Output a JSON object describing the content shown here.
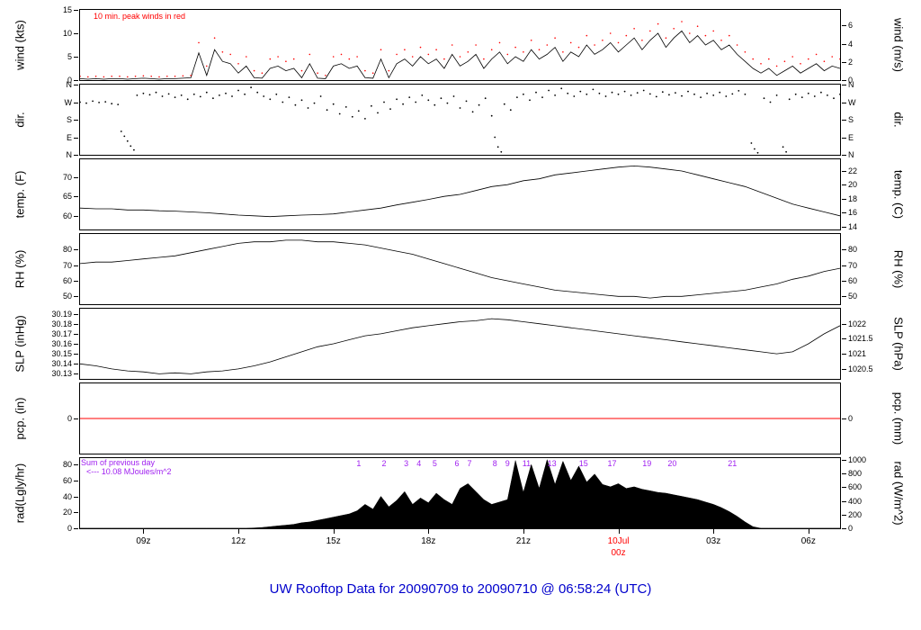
{
  "title": {
    "text": "UW Rooftop Data for 20090709  to  20090710 @ 06:58:24  (UTC)",
    "color": "#0000cc"
  },
  "annotations": {
    "wind_note": "10 min. peak winds in red",
    "wind_note_color": "#ff0000",
    "rad_sum_line1": "Sum of previous day",
    "rad_sum_line2": "<--- 10.08 MJoules/m^2",
    "rad_note_color": "#a020f0",
    "hour_color": "#a020f0"
  },
  "x_axis": {
    "ticks": [
      {
        "t": 9,
        "label": "09z"
      },
      {
        "t": 12,
        "label": "12z"
      },
      {
        "t": 15,
        "label": "15z"
      },
      {
        "t": 18,
        "label": "18z"
      },
      {
        "t": 21,
        "label": "21z"
      },
      {
        "t": 24,
        "label": "10Jul",
        "label2": "00z",
        "color": "#ff0000"
      },
      {
        "t": 27,
        "label": "03z"
      },
      {
        "t": 30,
        "label": "06z"
      }
    ]
  },
  "chart_data": {
    "type": "multi-panel time series",
    "x_range": [
      7,
      31
    ],
    "x_unit": "UTC hour (20090709 07z - 20090710 07z)",
    "panels": [
      {
        "id": "wind",
        "type": "line-points",
        "left_label": "wind (kts)",
        "right_label": "wind (m/s)",
        "ylim": [
          0,
          15
        ],
        "left_ticks": {
          "values": [
            15,
            10,
            5,
            0
          ],
          "labels": [
            "15",
            "10",
            "5",
            "0"
          ]
        },
        "right_ticks": {
          "values": [
            11.667,
            7.778,
            3.889,
            0
          ],
          "labels": [
            "6",
            "4",
            "2",
            "0"
          ]
        },
        "x_start": 7,
        "x_step": 0.25,
        "line_color": "#000000",
        "point_color": "#ff0000",
        "line": [
          0.3,
          0.2,
          0.3,
          0.2,
          0.3,
          0.3,
          0.2,
          0.3,
          0.4,
          0.3,
          0.2,
          0.3,
          0.3,
          0.4,
          0.5,
          5.8,
          1.0,
          6.5,
          4.0,
          3.5,
          1.5,
          3.0,
          0.5,
          0.4,
          2.5,
          3.0,
          2.0,
          2.5,
          0.5,
          3.5,
          0.4,
          0.3,
          3.0,
          3.5,
          2.5,
          3.0,
          0.5,
          0.4,
          4.5,
          0.5,
          3.5,
          4.5,
          3.0,
          5.0,
          3.5,
          4.5,
          2.5,
          5.5,
          3.0,
          4.0,
          5.5,
          2.5,
          4.5,
          6.0,
          3.5,
          5.0,
          4.0,
          6.5,
          4.5,
          5.5,
          7.0,
          4.0,
          6.0,
          5.0,
          7.5,
          5.5,
          6.5,
          8.0,
          6.0,
          7.5,
          9.0,
          6.5,
          8.5,
          10.0,
          7.0,
          9.0,
          10.5,
          8.0,
          9.5,
          7.5,
          8.5,
          6.5,
          7.5,
          5.5,
          4.0,
          2.5,
          1.5,
          2.5,
          1.0,
          2.0,
          3.0,
          1.5,
          2.5,
          3.5,
          2.0,
          3.0,
          2.5
        ],
        "points": [
          0.8,
          0.7,
          0.8,
          0.7,
          0.8,
          0.8,
          0.7,
          0.8,
          0.9,
          0.8,
          0.7,
          0.8,
          0.8,
          0.9,
          1.0,
          8.0,
          3.0,
          9.0,
          6.0,
          5.5,
          3.5,
          5.0,
          2.0,
          1.5,
          4.5,
          5.0,
          4.0,
          4.5,
          2.0,
          5.5,
          1.5,
          1.0,
          5.0,
          5.5,
          4.5,
          5.0,
          2.0,
          1.5,
          6.5,
          2.0,
          5.5,
          6.5,
          5.0,
          7.0,
          5.5,
          6.5,
          4.5,
          7.5,
          5.0,
          6.0,
          7.5,
          4.5,
          6.5,
          8.0,
          5.5,
          7.0,
          6.0,
          8.5,
          6.5,
          7.5,
          9.0,
          6.0,
          8.0,
          7.0,
          9.5,
          7.5,
          8.5,
          10.0,
          8.0,
          9.5,
          11.0,
          8.5,
          10.5,
          12.0,
          9.0,
          11.0,
          12.5,
          10.0,
          11.5,
          9.5,
          10.5,
          8.5,
          9.5,
          7.5,
          6.0,
          4.5,
          3.5,
          4.5,
          3.0,
          4.0,
          5.0,
          3.5,
          4.5,
          5.5,
          4.0,
          5.0,
          4.5
        ]
      },
      {
        "id": "dir",
        "type": "scatter",
        "left_label": "dir.",
        "right_label": "dir.",
        "ylim": [
          0,
          360
        ],
        "left_ticks": {
          "values": [
            360,
            270,
            180,
            90,
            0
          ],
          "labels": [
            "N",
            "W",
            "S",
            "E",
            "N"
          ]
        },
        "right_ticks": {
          "values": [
            360,
            270,
            180,
            90,
            0
          ],
          "labels": [
            "N",
            "W",
            "S",
            "E",
            "N"
          ]
        },
        "point_color": "#000000",
        "scatter_t": [
          7.0,
          7.2,
          7.4,
          7.6,
          7.8,
          8.0,
          8.2,
          8.3,
          8.4,
          8.5,
          8.6,
          8.7,
          8.8,
          9.0,
          9.2,
          9.4,
          9.6,
          9.8,
          10.0,
          10.2,
          10.4,
          10.6,
          10.8,
          11.0,
          11.2,
          11.4,
          11.6,
          11.8,
          12.0,
          12.2,
          12.4,
          12.6,
          12.8,
          13.0,
          13.2,
          13.4,
          13.6,
          13.8,
          14.0,
          14.2,
          14.4,
          14.6,
          14.8,
          15.0,
          15.2,
          15.4,
          15.6,
          15.8,
          16.0,
          16.2,
          16.4,
          16.6,
          16.8,
          17.0,
          17.2,
          17.4,
          17.6,
          17.8,
          18.0,
          18.2,
          18.4,
          18.6,
          18.8,
          19.0,
          19.2,
          19.4,
          19.6,
          19.8,
          20.0,
          20.1,
          20.2,
          20.3,
          20.4,
          20.6,
          20.8,
          21.0,
          21.2,
          21.4,
          21.6,
          21.8,
          22.0,
          22.2,
          22.4,
          22.6,
          22.8,
          23.0,
          23.2,
          23.4,
          23.6,
          23.8,
          24.0,
          24.2,
          24.4,
          24.6,
          24.8,
          25.0,
          25.2,
          25.4,
          25.6,
          25.8,
          26.0,
          26.2,
          26.4,
          26.6,
          26.8,
          27.0,
          27.2,
          27.4,
          27.6,
          27.8,
          28.0,
          28.2,
          28.3,
          28.4,
          28.6,
          28.8,
          29.0,
          29.2,
          29.3,
          29.4,
          29.6,
          29.8,
          30.0,
          30.2,
          30.4,
          30.6,
          30.8,
          31.0
        ],
        "scatter_v": [
          270,
          265,
          275,
          268,
          272,
          262,
          258,
          120,
          95,
          70,
          45,
          25,
          305,
          315,
          308,
          320,
          300,
          312,
          295,
          305,
          285,
          310,
          298,
          320,
          290,
          305,
          315,
          300,
          330,
          310,
          345,
          320,
          300,
          285,
          310,
          270,
          295,
          255,
          280,
          240,
          265,
          300,
          230,
          260,
          210,
          245,
          195,
          225,
          185,
          250,
          215,
          270,
          235,
          285,
          260,
          295,
          270,
          305,
          280,
          255,
          290,
          265,
          300,
          240,
          275,
          220,
          255,
          290,
          200,
          90,
          40,
          15,
          260,
          230,
          295,
          310,
          280,
          320,
          295,
          330,
          305,
          340,
          315,
          300,
          325,
          310,
          335,
          315,
          300,
          320,
          310,
          325,
          305,
          318,
          330,
          312,
          298,
          322,
          308,
          318,
          302,
          325,
          310,
          295,
          315,
          305,
          320,
          300,
          312,
          328,
          310,
          60,
          30,
          10,
          290,
          270,
          305,
          40,
          15,
          285,
          310,
          295,
          315,
          300,
          320,
          305,
          290,
          310
        ]
      },
      {
        "id": "temp",
        "type": "line",
        "left_label": "temp. (F)",
        "right_label": "temp. (C)",
        "ylim": [
          56.5,
          74.5
        ],
        "left_ticks": {
          "values": [
            70,
            65,
            60
          ],
          "labels": [
            "70",
            "65",
            "60"
          ]
        },
        "right_ticks": {
          "values": [
            71.6,
            68,
            64.4,
            60.8,
            57.2
          ],
          "labels": [
            "22",
            "20",
            "18",
            "16",
            "14"
          ]
        },
        "x_start": 7,
        "x_step": 0.5,
        "line_color": "#000000",
        "line": [
          62.0,
          61.8,
          61.8,
          61.5,
          61.5,
          61.3,
          61.2,
          61.0,
          60.8,
          60.5,
          60.2,
          60.0,
          59.8,
          60.0,
          60.2,
          60.3,
          60.5,
          61.0,
          61.5,
          62.0,
          62.8,
          63.5,
          64.2,
          65.0,
          65.5,
          66.5,
          67.5,
          68.0,
          69.0,
          69.5,
          70.5,
          71.0,
          71.5,
          72.0,
          72.5,
          72.8,
          72.5,
          72.0,
          71.5,
          70.5,
          69.5,
          68.5,
          67.5,
          66.0,
          64.5,
          63.0,
          62.0,
          61.0,
          60.0
        ]
      },
      {
        "id": "rh",
        "type": "line",
        "left_label": "RH (%)",
        "right_label": "RH (%)",
        "ylim": [
          45,
          90
        ],
        "left_ticks": {
          "values": [
            80,
            70,
            60,
            50
          ],
          "labels": [
            "80",
            "70",
            "60",
            "50"
          ]
        },
        "right_ticks": {
          "values": [
            80,
            70,
            60,
            50
          ],
          "labels": [
            "80",
            "70",
            "60",
            "50"
          ]
        },
        "x_start": 7,
        "x_step": 0.5,
        "line_color": "#000000",
        "line": [
          71,
          72,
          72,
          73,
          74,
          75,
          76,
          78,
          80,
          82,
          84,
          85,
          85,
          86,
          86,
          85,
          85,
          84,
          83,
          81,
          79,
          77,
          74,
          71,
          68,
          65,
          62,
          60,
          58,
          56,
          54,
          53,
          52,
          51,
          50,
          50,
          49,
          50,
          50,
          51,
          52,
          53,
          54,
          56,
          58,
          61,
          63,
          66,
          68
        ]
      },
      {
        "id": "slp",
        "type": "line",
        "left_label": "SLP (inHg)",
        "right_label": "SLP (hPa)",
        "ylim": [
          30.125,
          30.195
        ],
        "left_ticks": {
          "values": [
            30.19,
            30.18,
            30.17,
            30.16,
            30.15,
            30.14,
            30.13
          ],
          "labels": [
            "30.19",
            "30.18",
            "30.17",
            "30.16",
            "30.15",
            "30.14",
            "30.13"
          ]
        },
        "right_ticks": {
          "values": [
            30.18,
            30.165,
            30.15,
            30.135
          ],
          "labels": [
            "1022",
            "1021.5",
            "1021",
            "1020.5"
          ]
        },
        "x_start": 7,
        "x_step": 0.5,
        "line_color": "#000000",
        "line": [
          30.14,
          30.138,
          30.135,
          30.133,
          30.132,
          30.13,
          30.131,
          30.13,
          30.132,
          30.133,
          30.135,
          30.138,
          30.142,
          30.147,
          30.152,
          30.157,
          30.16,
          30.164,
          30.168,
          30.17,
          30.173,
          30.176,
          30.178,
          30.18,
          30.182,
          30.183,
          30.185,
          30.184,
          30.182,
          30.18,
          30.178,
          30.176,
          30.174,
          30.172,
          30.17,
          30.168,
          30.166,
          30.164,
          30.162,
          30.16,
          30.158,
          30.156,
          30.154,
          30.152,
          30.15,
          30.152,
          30.16,
          30.17,
          30.178
        ]
      },
      {
        "id": "pcp",
        "type": "flat",
        "left_label": "pcp. (in)",
        "right_label": "pcp. (mm)",
        "ylim": [
          -1,
          1
        ],
        "left_ticks": {
          "values": [
            0
          ],
          "labels": [
            "0"
          ]
        },
        "right_ticks": {
          "values": [
            0
          ],
          "labels": [
            "0"
          ]
        },
        "flat_value": 0,
        "line_color": "#ff0000"
      },
      {
        "id": "rad",
        "type": "area",
        "left_label": "rad(Lgly/hr)",
        "right_label": "rad (W/m^2)",
        "ylim": [
          0,
          88
        ],
        "left_ticks": {
          "values": [
            80,
            60,
            40,
            20,
            0
          ],
          "labels": [
            "80",
            "60",
            "40",
            "20",
            "0"
          ]
        },
        "right_ticks": {
          "values": [
            86,
            68.8,
            51.6,
            34.4,
            17.2,
            0
          ],
          "labels": [
            "1000",
            "800",
            "600",
            "400",
            "200",
            "0"
          ]
        },
        "x_start": 7,
        "x_step": 0.25,
        "fill_color": "#000000",
        "area": [
          0,
          0,
          0,
          0,
          0,
          0,
          0,
          0,
          0,
          0,
          0,
          0,
          0,
          0,
          0,
          0,
          0,
          0,
          0,
          0,
          0,
          0,
          0.5,
          1,
          2,
          3,
          4,
          5,
          7,
          8,
          10,
          12,
          14,
          16,
          18,
          22,
          30,
          24,
          40,
          27,
          35,
          46,
          30,
          38,
          32,
          44,
          36,
          30,
          50,
          56,
          46,
          36,
          30,
          33,
          36,
          85,
          45,
          80,
          50,
          86,
          55,
          84,
          60,
          78,
          58,
          68,
          55,
          52,
          56,
          50,
          52,
          49,
          47,
          45,
          44,
          42,
          40,
          38,
          36,
          33,
          30,
          26,
          21,
          15,
          8,
          2,
          0,
          0,
          0,
          0,
          0,
          0,
          0,
          0,
          0,
          0,
          0
        ],
        "hour_marks": [
          {
            "label": "1",
            "t": 15.8
          },
          {
            "label": "2",
            "t": 16.6
          },
          {
            "label": "3",
            "t": 17.3
          },
          {
            "label": "4",
            "t": 17.7
          },
          {
            "label": "5",
            "t": 18.2
          },
          {
            "label": "6",
            "t": 18.9
          },
          {
            "label": "7",
            "t": 19.3
          },
          {
            "label": "8",
            "t": 20.1
          },
          {
            "label": "9",
            "t": 20.5
          },
          {
            "label": "11",
            "t": 21.1
          },
          {
            "label": "13",
            "t": 21.9
          },
          {
            "label": "15",
            "t": 22.9
          },
          {
            "label": "17",
            "t": 23.8
          },
          {
            "label": "19",
            "t": 24.9
          },
          {
            "label": "20",
            "t": 25.7
          },
          {
            "label": "21",
            "t": 27.6
          }
        ]
      }
    ]
  }
}
